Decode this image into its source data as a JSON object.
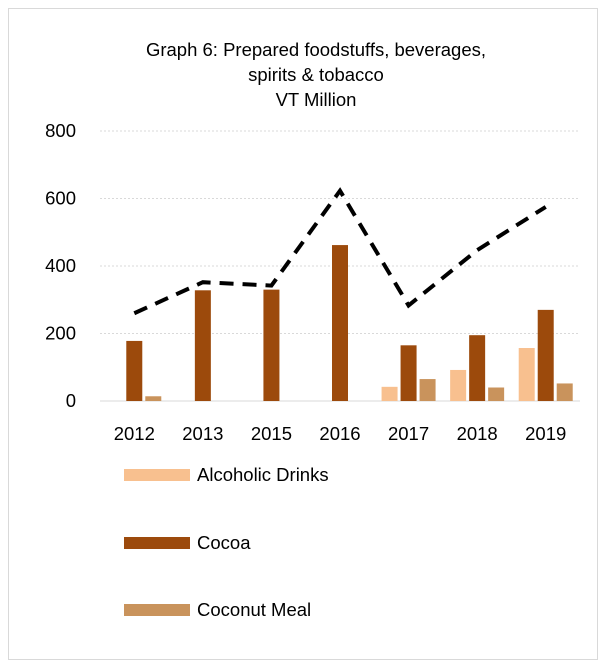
{
  "chart_data": {
    "type": "bar",
    "title_lines": [
      "Graph 6:  Prepared foodstuffs, beverages,",
      "spirits & tobacco",
      "VT Million"
    ],
    "categories": [
      "2012",
      "2013",
      "2015",
      "2016",
      "2017",
      "2018",
      "2019"
    ],
    "series": [
      {
        "name": "Alcoholic Drinks",
        "values": [
          0,
          0,
          0,
          0,
          42,
          92,
          157
        ],
        "color": "#f8c08f"
      },
      {
        "name": "Cocoa",
        "values": [
          178,
          328,
          330,
          462,
          165,
          195,
          270
        ],
        "color": "#9c4a0c"
      },
      {
        "name": "Coconut Meal",
        "values": [
          14,
          0,
          0,
          0,
          65,
          40,
          52
        ],
        "color": "#c9935c"
      }
    ],
    "line": {
      "values": [
        260,
        352,
        342,
        623,
        283,
        447,
        575
      ],
      "color": "#000000",
      "style": "dashed"
    },
    "ylim": [
      0,
      800
    ],
    "yticks": [
      "0",
      "200",
      "400",
      "600",
      "800"
    ],
    "grid": true,
    "legend_position": "bottom"
  }
}
